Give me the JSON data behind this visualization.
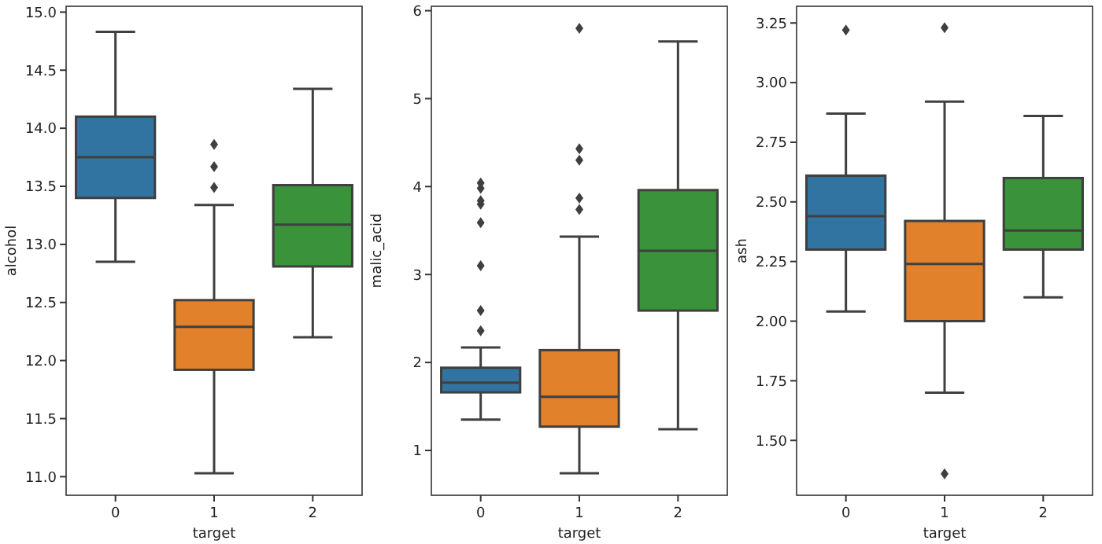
{
  "chart_data": [
    {
      "type": "box",
      "xlabel": "target",
      "ylabel": "alcohol",
      "categories": [
        "0",
        "1",
        "2"
      ],
      "colors": [
        "#3274a1",
        "#e1812c",
        "#3a923a"
      ],
      "ylim": [
        10.84,
        15.05
      ],
      "yticks": [
        {
          "value": 11,
          "label": "11.0"
        },
        11.5,
        {
          "value": 12,
          "label": "12.0"
        },
        12.5,
        {
          "value": 13,
          "label": "13.0"
        },
        13.5,
        {
          "value": 14,
          "label": "14.0"
        },
        14.5,
        {
          "value": 15,
          "label": "15.0"
        }
      ],
      "boxes": [
        {
          "low": 12.85,
          "q1": 13.4,
          "median": 13.75,
          "q3": 14.1,
          "high": 14.83
        },
        {
          "low": 11.03,
          "q1": 11.92,
          "median": 12.29,
          "q3": 12.52,
          "high": 13.34,
          "outliers": [
            13.49,
            13.67,
            13.86
          ]
        },
        {
          "low": 12.2,
          "q1": 12.81,
          "median": 13.17,
          "q3": 13.51,
          "high": 14.34
        }
      ]
    },
    {
      "type": "box",
      "xlabel": "target",
      "ylabel": "malic_acid",
      "categories": [
        "0",
        "1",
        "2"
      ],
      "colors": [
        "#3274a1",
        "#e1812c",
        "#3a923a"
      ],
      "ylim": [
        0.49,
        6.05
      ],
      "yticks": [
        1,
        2,
        3,
        4,
        5,
        6
      ],
      "boxes": [
        {
          "low": 1.35,
          "q1": 1.66,
          "median": 1.77,
          "q3": 1.94,
          "high": 2.17,
          "outliers": [
            2.36,
            2.59,
            3.1,
            3.59,
            3.8,
            3.84,
            3.98,
            4.04
          ]
        },
        {
          "low": 0.74,
          "q1": 1.27,
          "median": 1.61,
          "q3": 2.14,
          "high": 3.43,
          "outliers": [
            3.74,
            3.87,
            4.3,
            4.43,
            5.8
          ]
        },
        {
          "low": 1.24,
          "q1": 2.59,
          "median": 3.27,
          "q3": 3.96,
          "high": 5.65
        }
      ]
    },
    {
      "type": "box",
      "xlabel": "target",
      "ylabel": "ash",
      "categories": [
        "0",
        "1",
        "2"
      ],
      "colors": [
        "#3274a1",
        "#e1812c",
        "#3a923a"
      ],
      "ylim": [
        1.27,
        3.32
      ],
      "yticks": [
        {
          "value": 1.5,
          "label": "1.50"
        },
        1.75,
        {
          "value": 2,
          "label": "2.00"
        },
        2.25,
        {
          "value": 2.5,
          "label": "2.50"
        },
        2.75,
        {
          "value": 3,
          "label": "3.00"
        },
        3.25
      ],
      "boxes": [
        {
          "low": 2.04,
          "q1": 2.3,
          "median": 2.44,
          "q3": 2.61,
          "high": 2.87,
          "outliers": [
            3.22
          ]
        },
        {
          "low": 1.7,
          "q1": 2.0,
          "median": 2.24,
          "q3": 2.42,
          "high": 2.92,
          "outliers": [
            3.23,
            1.36
          ]
        },
        {
          "low": 2.1,
          "q1": 2.3,
          "median": 2.38,
          "q3": 2.6,
          "high": 2.86
        }
      ]
    }
  ]
}
